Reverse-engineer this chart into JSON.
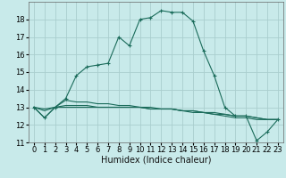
{
  "xlabel": "Humidex (Indice chaleur)",
  "xlim": [
    -0.5,
    23.5
  ],
  "ylim": [
    11,
    19
  ],
  "yticks": [
    11,
    12,
    13,
    14,
    15,
    16,
    17,
    18
  ],
  "xticks": [
    0,
    1,
    2,
    3,
    4,
    5,
    6,
    7,
    8,
    9,
    10,
    11,
    12,
    13,
    14,
    15,
    16,
    17,
    18,
    19,
    20,
    21,
    22,
    23
  ],
  "bg_color": "#c8eaea",
  "grid_color": "#aacece",
  "line_color": "#1a6b5a",
  "line1_x": [
    0,
    1,
    2,
    3,
    4,
    5,
    6,
    7,
    8,
    9,
    10,
    11,
    12,
    13,
    14,
    15,
    16,
    17,
    18,
    19,
    20,
    21,
    22,
    23
  ],
  "line1_y": [
    13.0,
    12.4,
    13.0,
    13.5,
    14.8,
    15.3,
    15.4,
    15.5,
    17.0,
    16.5,
    18.0,
    18.1,
    18.5,
    18.4,
    18.4,
    17.9,
    16.2,
    14.8,
    13.0,
    12.5,
    12.5,
    11.1,
    11.6,
    12.3
  ],
  "line2_x": [
    0,
    1,
    2,
    3,
    4,
    5,
    6,
    7,
    8,
    9,
    10,
    11,
    12,
    13,
    14,
    15,
    16,
    17,
    18,
    19,
    20,
    21,
    22,
    23
  ],
  "line2_y": [
    13.0,
    12.4,
    13.0,
    13.4,
    13.3,
    13.3,
    13.2,
    13.2,
    13.1,
    13.1,
    13.0,
    13.0,
    12.9,
    12.9,
    12.8,
    12.7,
    12.7,
    12.6,
    12.5,
    12.4,
    12.4,
    12.3,
    12.3,
    12.3
  ],
  "line3_x": [
    0,
    1,
    2,
    3,
    4,
    5,
    6,
    7,
    8,
    9,
    10,
    11,
    12,
    13,
    14,
    15,
    16,
    17,
    18,
    19,
    20,
    21,
    22,
    23
  ],
  "line3_y": [
    13.0,
    12.8,
    13.0,
    13.1,
    13.1,
    13.1,
    13.0,
    13.0,
    13.0,
    13.0,
    13.0,
    12.9,
    12.9,
    12.9,
    12.8,
    12.8,
    12.7,
    12.7,
    12.6,
    12.5,
    12.5,
    12.4,
    12.3,
    12.3
  ],
  "line4_x": [
    0,
    1,
    2,
    3,
    4,
    5,
    6,
    7,
    8,
    9,
    10,
    11,
    12,
    13,
    14,
    15,
    16,
    17,
    18,
    19,
    20,
    21,
    22,
    23
  ],
  "line4_y": [
    13.0,
    12.9,
    13.0,
    13.0,
    13.0,
    13.0,
    13.0,
    13.0,
    13.0,
    13.0,
    13.0,
    12.9,
    12.9,
    12.9,
    12.8,
    12.8,
    12.7,
    12.6,
    12.6,
    12.5,
    12.5,
    12.4,
    12.3,
    12.3
  ],
  "tick_fontsize": 6,
  "xlabel_fontsize": 7
}
